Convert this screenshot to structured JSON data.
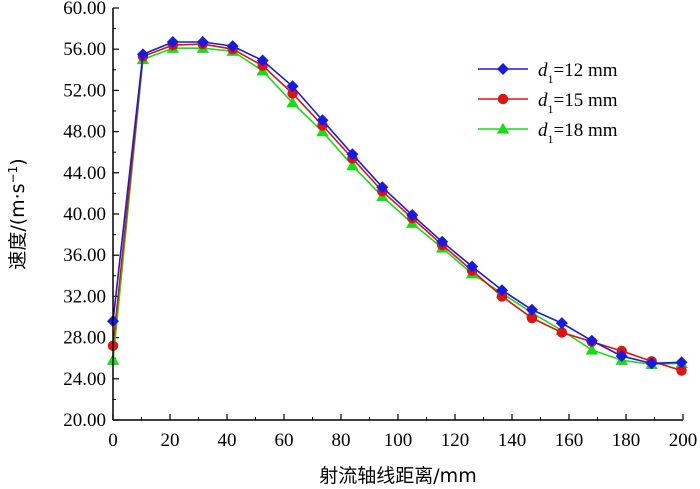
{
  "chart_data": {
    "type": "line",
    "title": "",
    "xlabel": "射流轴线距离/mm",
    "ylabel_prefix": "速度/(m·s",
    "ylabel_sup": "−1",
    "ylabel_suffix": ")",
    "xlim": [
      0,
      200
    ],
    "ylim": [
      20,
      60
    ],
    "xticks": [
      0,
      20,
      40,
      60,
      80,
      100,
      120,
      140,
      160,
      180,
      200
    ],
    "yticks": [
      20,
      24,
      28,
      32,
      36,
      40,
      44,
      48,
      52,
      56,
      60
    ],
    "ytick_labels": [
      "20.00",
      "24.00",
      "28.00",
      "32.00",
      "36.00",
      "40.00",
      "44.00",
      "48.00",
      "52.00",
      "56.00",
      "60.00"
    ],
    "xtick_labels": [
      "0",
      "20",
      "40",
      "60",
      "80",
      "100",
      "120",
      "140",
      "160",
      "180",
      "200"
    ],
    "x": [
      0,
      10.5,
      21,
      31.5,
      42,
      52.5,
      63,
      73.5,
      84,
      94.5,
      105,
      115.5,
      126,
      136.5,
      147,
      157.5,
      168,
      178.5,
      189,
      199.5
    ],
    "legend_position": "top-right",
    "series": [
      {
        "name": "d1=12 mm",
        "legend_var": "d",
        "legend_sub": "1",
        "legend_rest": "=12 mm",
        "color": "#1a1adc",
        "marker": "diamond",
        "values": [
          29.6,
          55.5,
          56.7,
          56.7,
          56.3,
          54.9,
          52.4,
          49.1,
          45.8,
          42.6,
          39.9,
          37.3,
          34.9,
          32.6,
          30.7,
          29.4,
          27.7,
          26.2,
          25.5,
          25.6
        ]
      },
      {
        "name": "d1=15 mm",
        "legend_var": "d",
        "legend_sub": "1",
        "legend_rest": "=15 mm",
        "color": "#dc1414",
        "marker": "circle",
        "values": [
          27.2,
          55.3,
          56.4,
          56.5,
          56.0,
          54.4,
          51.7,
          48.6,
          45.4,
          42.2,
          39.6,
          37.0,
          34.5,
          32.0,
          29.9,
          28.5,
          27.6,
          26.7,
          25.7,
          24.8
        ]
      },
      {
        "name": "d1=18 mm",
        "legend_var": "d",
        "legend_sub": "1",
        "legend_rest": "=18 mm",
        "color": "#19dc19",
        "marker": "triangle",
        "values": [
          25.8,
          55.0,
          56.1,
          56.1,
          55.8,
          53.9,
          50.8,
          48.0,
          44.7,
          41.7,
          39.1,
          36.7,
          34.2,
          32.3,
          30.4,
          28.7,
          26.8,
          25.8,
          25.4,
          25.5
        ]
      }
    ]
  }
}
